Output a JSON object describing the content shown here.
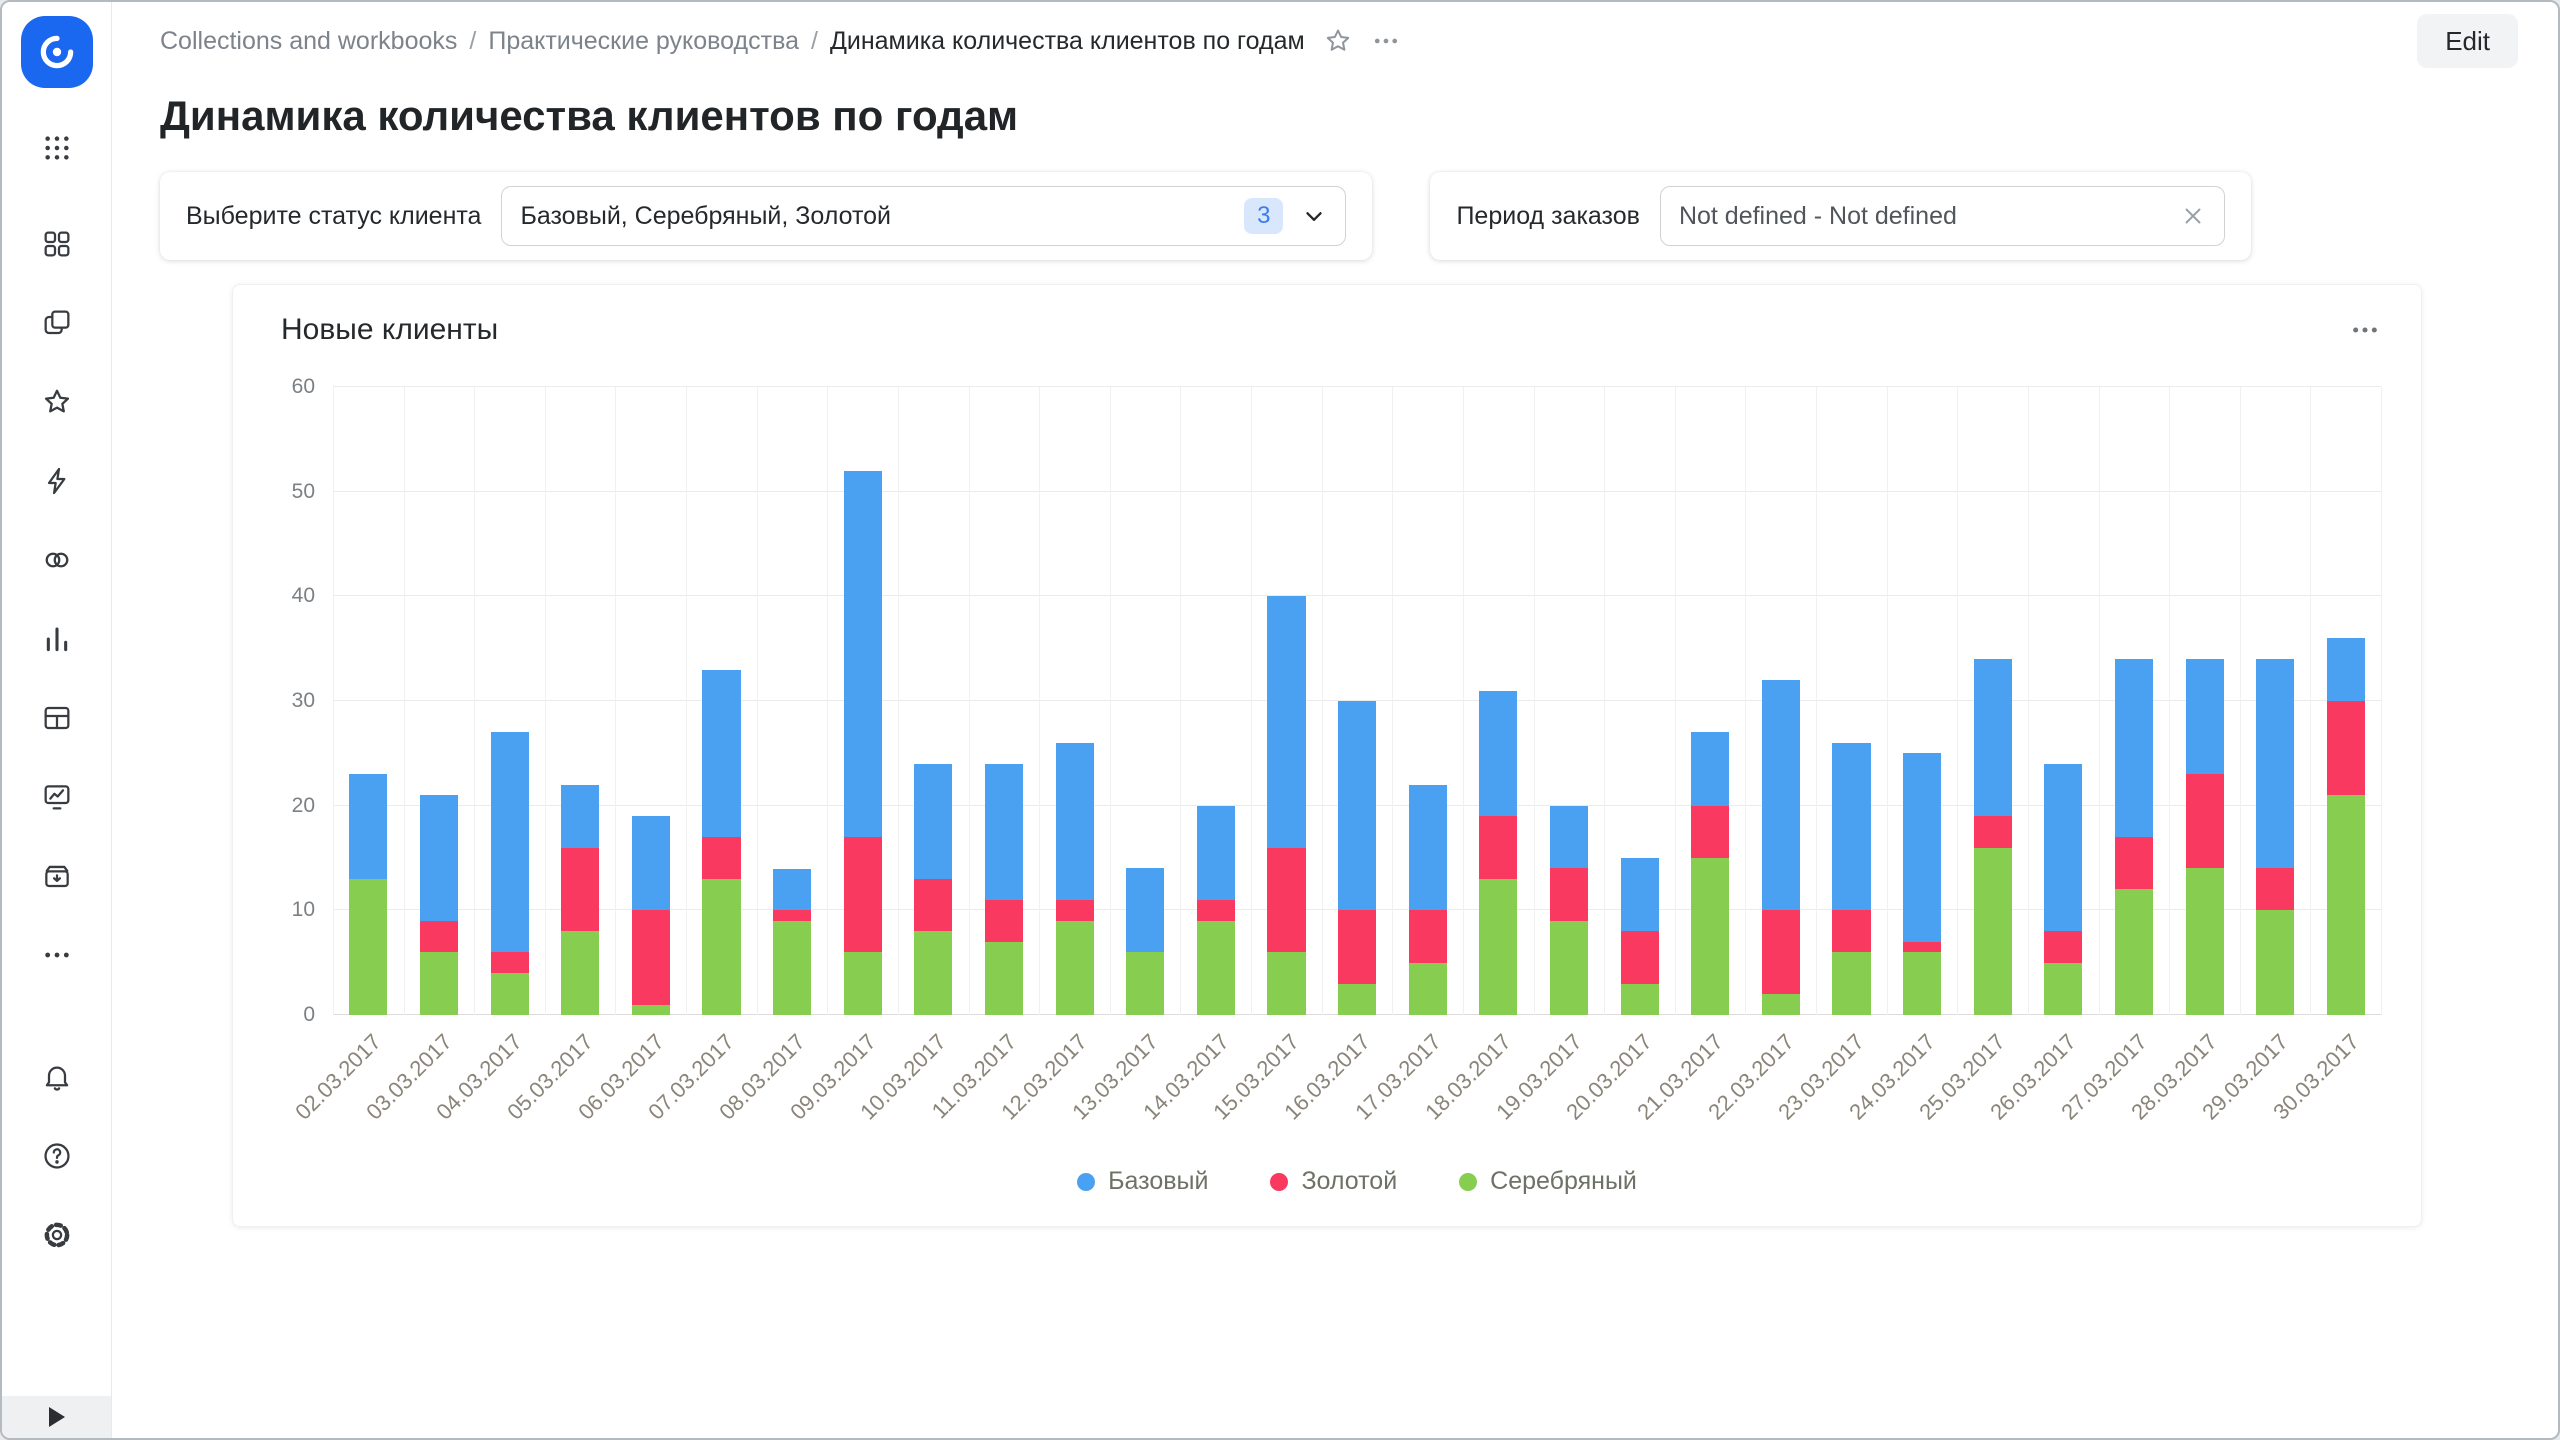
{
  "app": {
    "edit_button": "Edit"
  },
  "colors": {
    "accent": "#1b68f0",
    "base_blue": "#4aa1f2",
    "gold_red": "#f9395f",
    "silver_green": "#86cd50"
  },
  "sidebar": {
    "icons": [
      "datalens-logo",
      "apps-grid",
      "collections",
      "workbooks",
      "favorites",
      "connections",
      "datasets",
      "charts",
      "dashboards",
      "editor",
      "storage",
      "more",
      "notifications",
      "help",
      "settings",
      "collapse"
    ]
  },
  "breadcrumbs": {
    "separator": "/",
    "items": [
      "Collections and workbooks",
      "Практические руководства",
      "Динамика количества клиентов по годам"
    ]
  },
  "page": {
    "title": "Динамика количества клиентов по годам"
  },
  "filters": {
    "status": {
      "label": "Выберите статус клиента",
      "value": "Базовый, Серебряный, Золотой",
      "count": "3"
    },
    "period": {
      "label": "Период заказов",
      "value": "Not defined - Not defined"
    }
  },
  "chart": {
    "title": "Новые клиенты"
  },
  "chart_data": {
    "type": "bar",
    "stacked": true,
    "title": "Новые клиенты",
    "ylim": [
      0,
      60
    ],
    "yticks": [
      0,
      10,
      20,
      30,
      40,
      50,
      60
    ],
    "grid": true,
    "legend_position": "bottom",
    "legend_order": [
      "Базовый",
      "Золотой",
      "Серебряный"
    ],
    "categories": [
      "02.03.2017",
      "03.03.2017",
      "04.03.2017",
      "05.03.2017",
      "06.03.2017",
      "07.03.2017",
      "08.03.2017",
      "09.03.2017",
      "10.03.2017",
      "11.03.2017",
      "12.03.2017",
      "13.03.2017",
      "14.03.2017",
      "15.03.2017",
      "16.03.2017",
      "17.03.2017",
      "18.03.2017",
      "19.03.2017",
      "20.03.2017",
      "21.03.2017",
      "22.03.2017",
      "23.03.2017",
      "24.03.2017",
      "25.03.2017",
      "26.03.2017",
      "27.03.2017",
      "28.03.2017",
      "29.03.2017",
      "30.03.2017"
    ],
    "series": [
      {
        "name": "Серебряный",
        "color": "#86cd50",
        "values": [
          13,
          6,
          4,
          8,
          1,
          13,
          9,
          6,
          8,
          7,
          9,
          6,
          9,
          6,
          3,
          5,
          13,
          9,
          3,
          15,
          2,
          6,
          6,
          16,
          5,
          12,
          14,
          10,
          21
        ]
      },
      {
        "name": "Золотой",
        "color": "#f9395f",
        "values": [
          0,
          3,
          2,
          8,
          9,
          4,
          1,
          11,
          5,
          4,
          2,
          0,
          2,
          10,
          7,
          5,
          6,
          5,
          5,
          5,
          8,
          4,
          1,
          3,
          3,
          5,
          9,
          4,
          9
        ]
      },
      {
        "name": "Базовый",
        "color": "#4aa1f2",
        "values": [
          10,
          12,
          21,
          6,
          9,
          16,
          4,
          35,
          11,
          13,
          15,
          8,
          9,
          24,
          20,
          12,
          12,
          6,
          7,
          7,
          22,
          16,
          18,
          15,
          16,
          17,
          11,
          20,
          6
        ]
      }
    ]
  }
}
